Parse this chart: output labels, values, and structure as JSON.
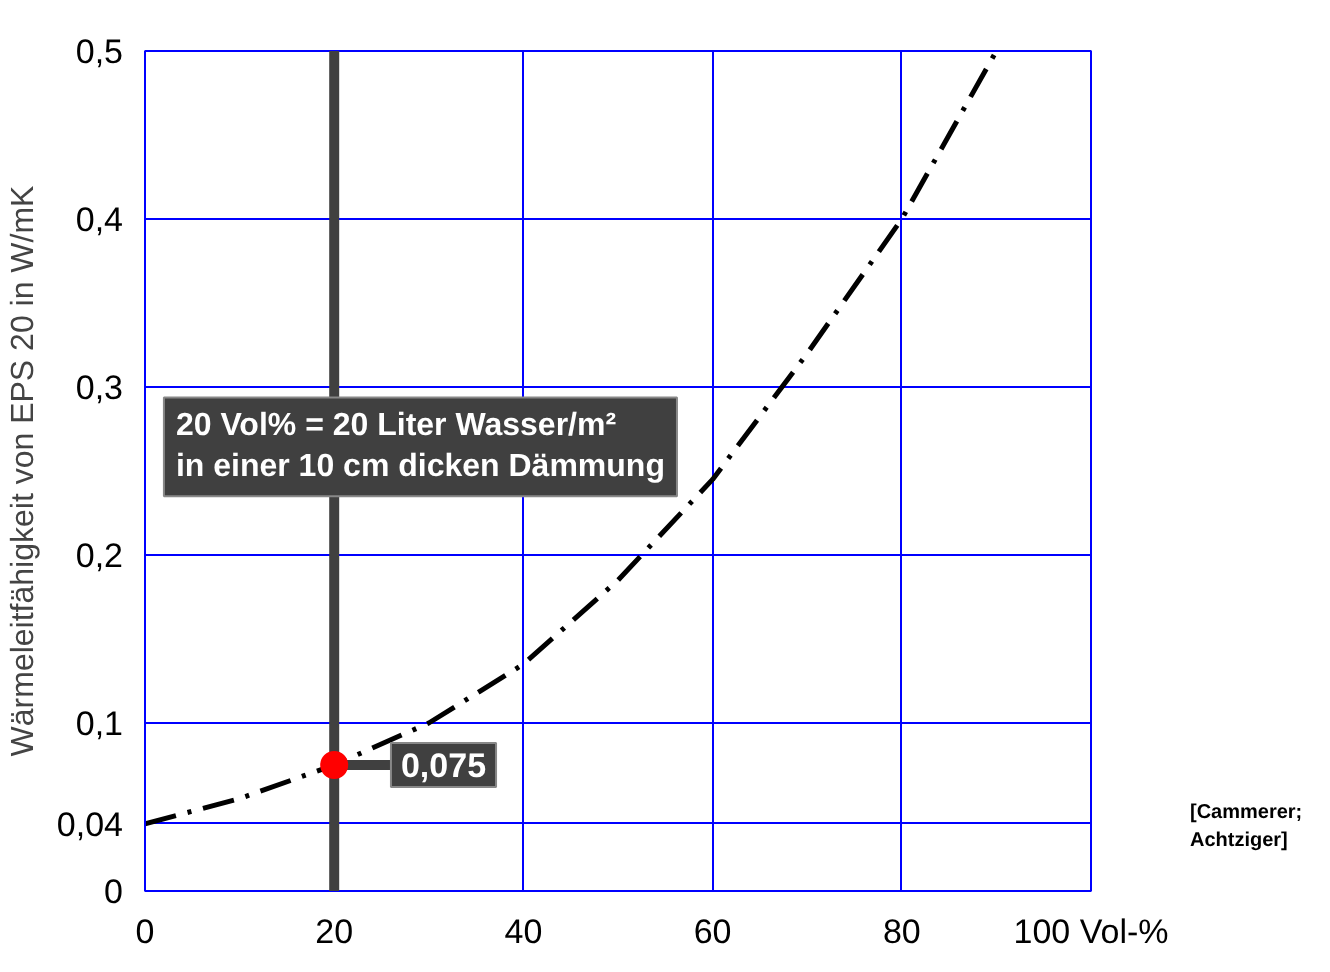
{
  "chart_data": {
    "type": "line",
    "ylabel": "Wärmeleitfähigkeit von EPS 20 in W/mK",
    "x": [
      0,
      10,
      20,
      30,
      40,
      50,
      60,
      70,
      80,
      85,
      90
    ],
    "series": [
      {
        "color": "#000000",
        "line_style": "dashdot",
        "values": [
          0.04,
          0.055,
          0.075,
          0.1,
          0.135,
          0.185,
          0.245,
          0.32,
          0.4,
          0.45,
          0.5
        ]
      },
      {
        "type": "scatter",
        "color": "#ff0000",
        "x": [
          20
        ],
        "values": [
          0.075
        ],
        "marker": "circle"
      }
    ],
    "xlim": [
      0,
      100
    ],
    "ylim": [
      0,
      0.5
    ],
    "xticks": [
      0,
      20,
      40,
      60,
      80,
      {
        "value": 100,
        "label": "100 Vol-%"
      }
    ],
    "yticks": [
      0,
      {
        "value": 0.04,
        "label": "0,04"
      },
      {
        "value": 0.1,
        "label": "0,1"
      },
      {
        "value": 0.2,
        "label": "0,2"
      },
      {
        "value": 0.3,
        "label": "0,3"
      },
      {
        "value": 0.4,
        "label": "0,4"
      },
      {
        "value": 0.5,
        "label": "0,5"
      }
    ],
    "grid": true,
    "ref_lines": [
      {
        "axis": "x",
        "value": 20,
        "color": "#404040"
      }
    ],
    "annotations": [
      "20 Vol% = 20 Liter Wasser/m²\nin einer 10 cm dicken Dämmung",
      {
        "text": "0,075",
        "x": 20,
        "y": 0.075
      },
      "[Cammerer;\nAchtziger]"
    ]
  }
}
